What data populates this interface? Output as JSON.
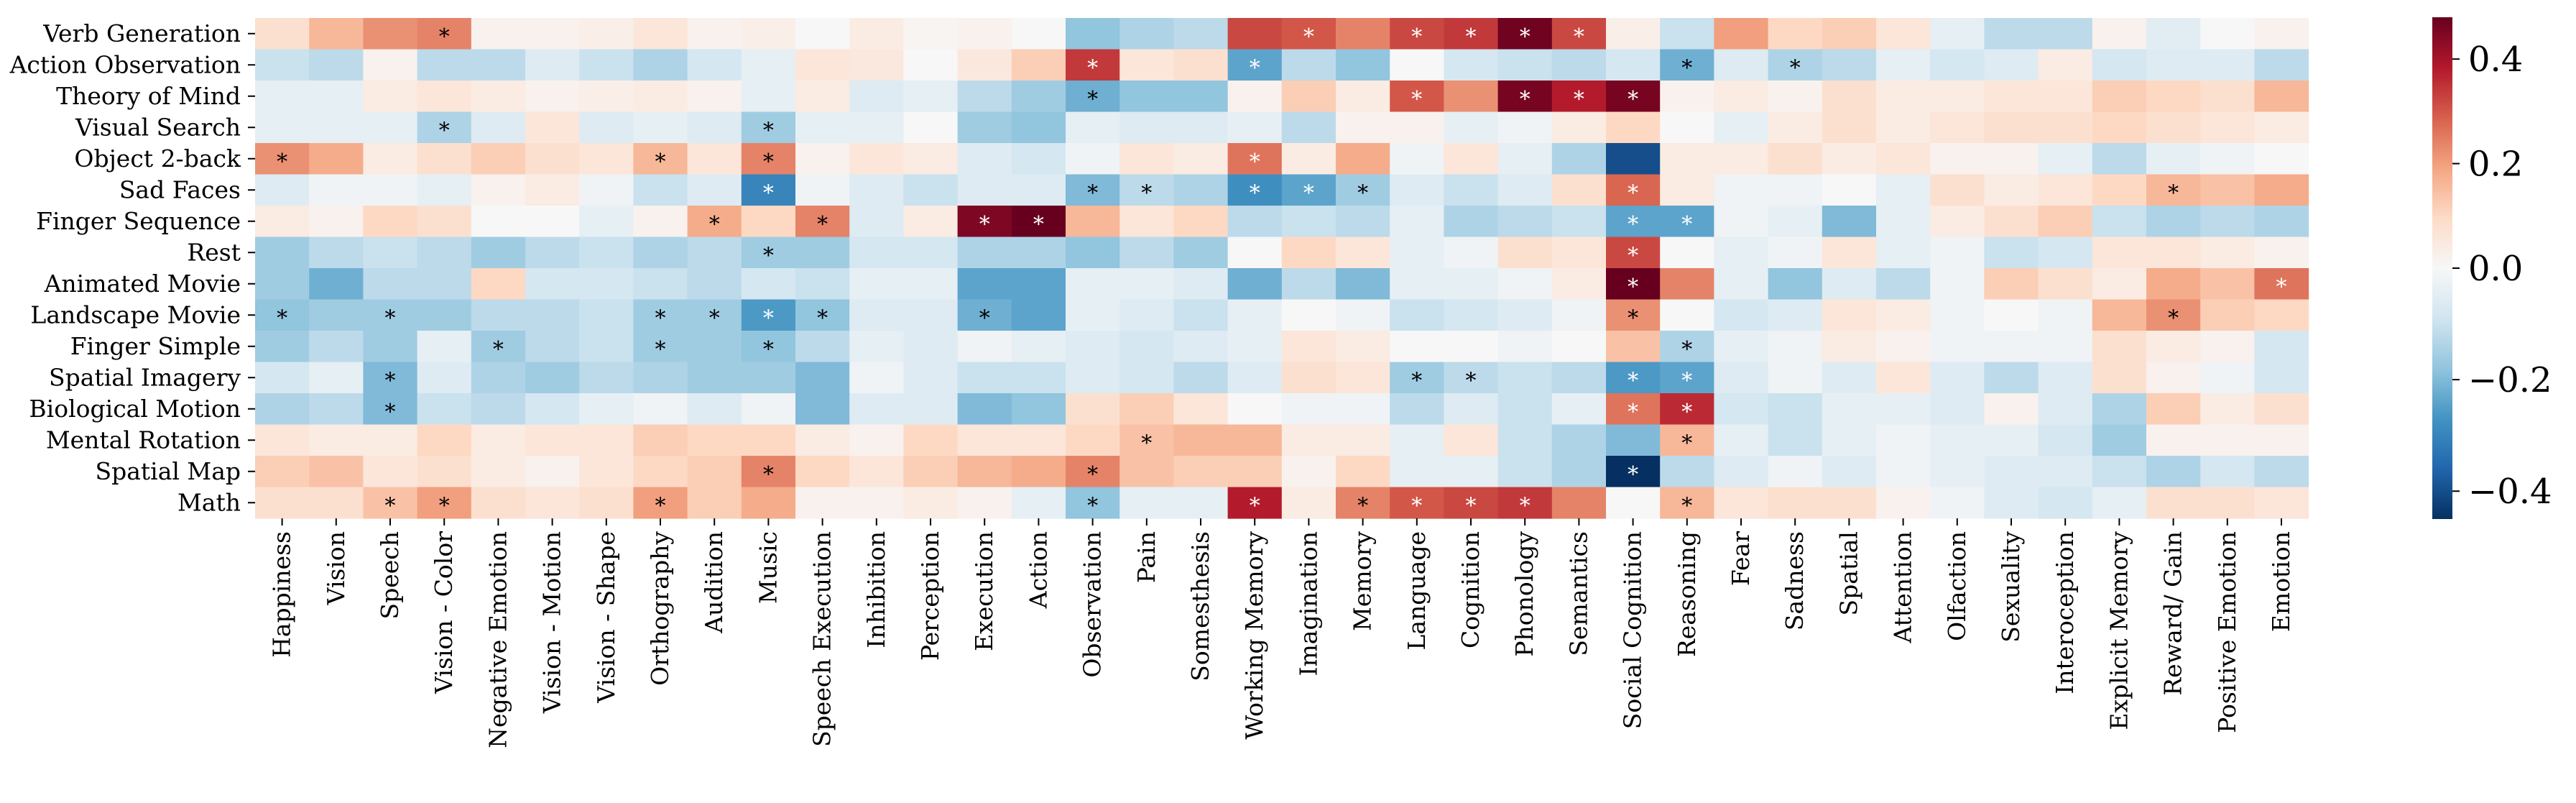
{
  "chart_data": {
    "type": "heatmap",
    "title": "",
    "xlabel": "",
    "ylabel": "",
    "rows": [
      "Verb Generation",
      "Action Observation",
      "Theory of Mind",
      "Visual Search",
      "Object 2-back",
      "Sad Faces",
      "Finger Sequence",
      "Rest",
      "Animated Movie",
      "Landscape Movie",
      "Finger Simple",
      "Spatial Imagery",
      "Biological Motion",
      "Mental Rotation",
      "Spatial Map",
      "Math"
    ],
    "columns": [
      "Happiness",
      "Vision",
      "Speech",
      "Vision - Color",
      "Negative Emotion",
      "Vision - Motion",
      "Vision - Shape",
      "Orthography",
      "Audition",
      "Music",
      "Speech Execution",
      "Inhibition",
      "Perception",
      "Execution",
      "Action",
      "Observation",
      "Pain",
      "Somesthesis",
      "Working Memory",
      "Imagination",
      "Memory",
      "Language",
      "Cognition",
      "Phonology",
      "Semantics",
      "Social Cognition",
      "Reasoning",
      "Fear",
      "Sadness",
      "Spatial",
      "Attention",
      "Olfaction",
      "Sexuality",
      "Interoception",
      "Explicit Memory",
      "Reward/ Gain",
      "Positive Emotion",
      "Emotion"
    ],
    "values": [
      [
        0.08,
        0.16,
        0.22,
        0.24,
        0.02,
        0.02,
        0.03,
        0.06,
        0.02,
        0.03,
        0.0,
        0.04,
        0.01,
        0.02,
        0.0,
        -0.18,
        -0.14,
        -0.12,
        0.32,
        0.3,
        0.24,
        0.32,
        0.34,
        0.47,
        0.32,
        0.03,
        -0.1,
        0.2,
        0.1,
        0.12,
        0.06,
        -0.04,
        -0.12,
        -0.12,
        0.02,
        -0.05,
        0.0,
        0.02
      ],
      [
        -0.1,
        -0.12,
        0.02,
        -0.12,
        -0.12,
        -0.06,
        -0.1,
        -0.14,
        -0.08,
        -0.04,
        0.06,
        0.05,
        0.0,
        0.05,
        0.12,
        0.34,
        0.06,
        0.08,
        -0.24,
        -0.12,
        -0.18,
        0.0,
        -0.08,
        -0.1,
        -0.12,
        -0.08,
        -0.22,
        -0.06,
        -0.14,
        -0.12,
        -0.04,
        -0.08,
        -0.06,
        0.04,
        -0.08,
        -0.06,
        -0.06,
        -0.12
      ],
      [
        -0.04,
        -0.04,
        0.04,
        0.06,
        0.04,
        0.02,
        0.03,
        0.04,
        0.02,
        -0.04,
        0.04,
        -0.06,
        -0.04,
        -0.12,
        -0.16,
        -0.22,
        -0.18,
        -0.18,
        0.02,
        0.12,
        0.04,
        0.3,
        0.22,
        0.46,
        0.38,
        0.46,
        0.02,
        0.04,
        0.02,
        0.08,
        0.04,
        0.04,
        0.06,
        0.06,
        0.12,
        0.1,
        0.08,
        0.16
      ],
      [
        -0.04,
        -0.04,
        -0.04,
        -0.14,
        -0.06,
        0.06,
        -0.06,
        -0.04,
        -0.06,
        -0.16,
        -0.04,
        -0.04,
        0.0,
        -0.16,
        -0.18,
        -0.04,
        -0.06,
        -0.06,
        -0.04,
        -0.12,
        0.02,
        0.02,
        -0.04,
        -0.02,
        0.04,
        0.1,
        0.0,
        -0.04,
        0.04,
        0.08,
        0.04,
        0.06,
        0.08,
        0.08,
        0.1,
        0.08,
        0.06,
        0.04
      ],
      [
        0.22,
        0.18,
        0.04,
        0.08,
        0.12,
        0.08,
        0.06,
        0.16,
        0.06,
        0.24,
        0.02,
        0.06,
        0.04,
        -0.06,
        -0.08,
        -0.02,
        0.06,
        0.04,
        0.26,
        0.04,
        0.18,
        -0.02,
        0.06,
        -0.04,
        -0.14,
        -0.4,
        0.04,
        0.04,
        0.08,
        0.04,
        0.06,
        0.02,
        0.02,
        -0.04,
        -0.12,
        -0.04,
        -0.02,
        0.0
      ],
      [
        -0.06,
        -0.02,
        -0.02,
        -0.04,
        0.02,
        0.04,
        -0.02,
        -0.1,
        -0.06,
        -0.3,
        -0.02,
        -0.06,
        -0.1,
        -0.06,
        -0.06,
        -0.2,
        -0.12,
        -0.14,
        -0.28,
        -0.24,
        -0.16,
        -0.06,
        -0.1,
        -0.06,
        0.08,
        0.28,
        0.04,
        -0.02,
        -0.02,
        0.0,
        -0.04,
        0.08,
        0.04,
        0.06,
        0.1,
        0.16,
        0.14,
        0.18
      ],
      [
        0.04,
        0.02,
        0.1,
        0.08,
        0.0,
        0.0,
        -0.04,
        0.02,
        0.18,
        0.1,
        0.24,
        -0.06,
        0.04,
        0.45,
        0.48,
        0.16,
        0.06,
        0.1,
        -0.12,
        -0.1,
        -0.12,
        -0.04,
        -0.14,
        -0.12,
        -0.1,
        -0.24,
        -0.24,
        -0.02,
        -0.04,
        -0.2,
        -0.04,
        0.04,
        0.08,
        0.12,
        -0.1,
        -0.14,
        -0.12,
        -0.14
      ],
      [
        -0.16,
        -0.12,
        -0.1,
        -0.12,
        -0.16,
        -0.12,
        -0.1,
        -0.14,
        -0.12,
        -0.16,
        -0.16,
        -0.08,
        -0.08,
        -0.14,
        -0.14,
        -0.18,
        -0.12,
        -0.16,
        0.0,
        0.1,
        0.06,
        -0.04,
        -0.02,
        0.08,
        0.06,
        0.32,
        0.0,
        -0.04,
        -0.02,
        0.06,
        -0.04,
        -0.02,
        -0.1,
        -0.08,
        0.06,
        0.06,
        0.04,
        0.02
      ],
      [
        -0.16,
        -0.22,
        -0.12,
        -0.12,
        0.1,
        -0.08,
        -0.08,
        -0.1,
        -0.12,
        -0.08,
        -0.1,
        -0.04,
        -0.04,
        -0.24,
        -0.24,
        -0.04,
        -0.04,
        -0.06,
        -0.22,
        -0.12,
        -0.2,
        -0.04,
        -0.04,
        -0.02,
        0.04,
        0.48,
        0.24,
        -0.04,
        -0.18,
        -0.06,
        -0.12,
        -0.02,
        0.12,
        0.08,
        0.04,
        0.18,
        0.14,
        0.26
      ],
      [
        -0.18,
        -0.16,
        -0.16,
        -0.16,
        -0.12,
        -0.12,
        -0.1,
        -0.16,
        -0.16,
        -0.26,
        -0.18,
        -0.06,
        -0.06,
        -0.22,
        -0.24,
        -0.04,
        -0.06,
        -0.1,
        -0.04,
        0.0,
        -0.02,
        -0.1,
        -0.08,
        -0.06,
        -0.02,
        0.22,
        0.0,
        -0.08,
        -0.06,
        0.06,
        0.04,
        -0.02,
        0.0,
        -0.02,
        0.16,
        0.22,
        0.12,
        0.1
      ],
      [
        -0.16,
        -0.12,
        -0.16,
        -0.04,
        -0.16,
        -0.12,
        -0.1,
        -0.16,
        -0.16,
        -0.18,
        -0.12,
        -0.04,
        -0.06,
        -0.02,
        -0.04,
        -0.06,
        -0.08,
        -0.06,
        -0.04,
        0.06,
        0.04,
        0.0,
        0.0,
        -0.02,
        0.0,
        0.14,
        -0.14,
        -0.04,
        -0.02,
        0.04,
        0.02,
        -0.02,
        -0.02,
        -0.02,
        0.08,
        0.04,
        0.02,
        -0.08
      ],
      [
        -0.08,
        -0.04,
        -0.2,
        -0.06,
        -0.14,
        -0.16,
        -0.12,
        -0.14,
        -0.16,
        -0.16,
        -0.2,
        -0.02,
        -0.06,
        -0.1,
        -0.1,
        -0.06,
        -0.08,
        -0.12,
        -0.06,
        0.08,
        0.06,
        -0.16,
        -0.12,
        -0.1,
        -0.12,
        -0.26,
        -0.24,
        -0.06,
        -0.02,
        -0.06,
        0.06,
        -0.06,
        -0.12,
        -0.06,
        0.08,
        0.02,
        -0.02,
        -0.08
      ],
      [
        -0.14,
        -0.12,
        -0.2,
        -0.1,
        -0.12,
        -0.08,
        -0.04,
        -0.02,
        -0.06,
        -0.02,
        -0.2,
        -0.06,
        -0.06,
        -0.2,
        -0.18,
        0.08,
        0.12,
        0.06,
        0.0,
        -0.02,
        -0.02,
        -0.12,
        -0.06,
        -0.1,
        -0.04,
        0.26,
        0.36,
        -0.08,
        -0.1,
        -0.04,
        -0.04,
        -0.06,
        0.02,
        -0.06,
        -0.14,
        0.12,
        0.04,
        0.08
      ],
      [
        0.06,
        0.04,
        0.04,
        0.1,
        0.04,
        0.06,
        0.06,
        0.12,
        0.1,
        0.1,
        0.04,
        0.02,
        0.1,
        0.06,
        0.06,
        0.1,
        0.14,
        0.16,
        0.16,
        0.04,
        0.04,
        -0.04,
        0.06,
        -0.1,
        -0.14,
        -0.2,
        0.16,
        -0.04,
        -0.1,
        -0.04,
        -0.02,
        -0.04,
        -0.04,
        -0.08,
        -0.16,
        0.02,
        0.02,
        0.02
      ],
      [
        0.12,
        0.14,
        0.06,
        0.08,
        0.04,
        0.02,
        0.06,
        0.1,
        0.12,
        0.24,
        0.1,
        0.06,
        0.12,
        0.16,
        0.18,
        0.24,
        0.14,
        0.12,
        0.12,
        0.02,
        0.1,
        -0.04,
        -0.04,
        -0.1,
        -0.14,
        -0.45,
        -0.12,
        -0.06,
        -0.02,
        -0.06,
        -0.02,
        -0.04,
        -0.06,
        -0.06,
        -0.1,
        -0.14,
        -0.08,
        -0.12
      ],
      [
        0.08,
        0.08,
        0.14,
        0.2,
        0.08,
        0.06,
        0.08,
        0.2,
        0.12,
        0.18,
        0.02,
        0.02,
        0.04,
        0.02,
        -0.04,
        -0.18,
        -0.04,
        -0.04,
        0.38,
        0.04,
        0.24,
        0.3,
        0.32,
        0.34,
        0.24,
        0.0,
        0.16,
        0.06,
        0.08,
        0.08,
        0.02,
        -0.02,
        -0.06,
        -0.08,
        -0.04,
        0.08,
        0.08,
        0.06
      ]
    ],
    "significance_marker": "*",
    "significant_cells": [
      [
        0,
        3
      ],
      [
        0,
        19
      ],
      [
        0,
        21
      ],
      [
        0,
        22
      ],
      [
        0,
        23
      ],
      [
        0,
        24
      ],
      [
        1,
        15
      ],
      [
        1,
        18
      ],
      [
        1,
        26
      ],
      [
        1,
        28
      ],
      [
        2,
        15
      ],
      [
        2,
        21
      ],
      [
        2,
        23
      ],
      [
        2,
        24
      ],
      [
        2,
        25
      ],
      [
        3,
        3
      ],
      [
        3,
        9
      ],
      [
        4,
        0
      ],
      [
        4,
        7
      ],
      [
        4,
        9
      ],
      [
        4,
        18
      ],
      [
        5,
        9
      ],
      [
        5,
        15
      ],
      [
        5,
        16
      ],
      [
        5,
        18
      ],
      [
        5,
        19
      ],
      [
        5,
        20
      ],
      [
        5,
        25
      ],
      [
        5,
        35
      ],
      [
        6,
        8
      ],
      [
        6,
        10
      ],
      [
        6,
        13
      ],
      [
        6,
        14
      ],
      [
        6,
        25
      ],
      [
        6,
        26
      ],
      [
        7,
        9
      ],
      [
        7,
        25
      ],
      [
        8,
        25
      ],
      [
        8,
        37
      ],
      [
        9,
        0
      ],
      [
        9,
        2
      ],
      [
        9,
        7
      ],
      [
        9,
        8
      ],
      [
        9,
        9
      ],
      [
        9,
        10
      ],
      [
        9,
        13
      ],
      [
        9,
        25
      ],
      [
        9,
        35
      ],
      [
        10,
        4
      ],
      [
        10,
        7
      ],
      [
        10,
        9
      ],
      [
        10,
        26
      ],
      [
        11,
        2
      ],
      [
        11,
        21
      ],
      [
        11,
        22
      ],
      [
        11,
        25
      ],
      [
        11,
        26
      ],
      [
        12,
        2
      ],
      [
        12,
        25
      ],
      [
        12,
        26
      ],
      [
        13,
        16
      ],
      [
        13,
        26
      ],
      [
        14,
        9
      ],
      [
        14,
        15
      ],
      [
        14,
        25
      ],
      [
        15,
        2
      ],
      [
        15,
        3
      ],
      [
        15,
        7
      ],
      [
        15,
        15
      ],
      [
        15,
        18
      ],
      [
        15,
        20
      ],
      [
        15,
        21
      ],
      [
        15,
        22
      ],
      [
        15,
        23
      ],
      [
        15,
        26
      ]
    ],
    "colormap": "RdBu_r",
    "vmin": -0.45,
    "vmax": 0.48,
    "colorbar_ticks": [
      0.4,
      0.2,
      0.0,
      -0.2,
      -0.4
    ],
    "colorbar_tick_labels": [
      "0.4",
      "0.2",
      "0.0",
      "−0.2",
      "−0.4"
    ],
    "colorbar_stops": [
      "#053061",
      "#2166ac",
      "#4393c3",
      "#92c5de",
      "#d1e5f0",
      "#f7f7f7",
      "#fddbc7",
      "#f4a582",
      "#d6604d",
      "#b2182b",
      "#67001f"
    ],
    "grid": false,
    "legend": "colorbar-right"
  }
}
